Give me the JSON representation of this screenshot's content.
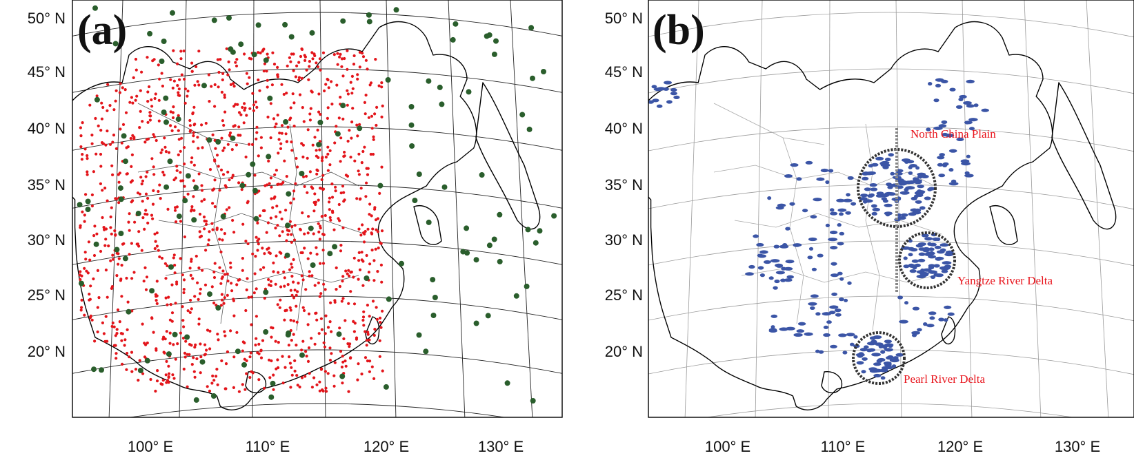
{
  "colors": {
    "surface_site": "#e3151b",
    "sounding_site": "#2a5e2c",
    "hotspot": "#3b55a6",
    "region_text": "#e8141c",
    "circle": "#333333"
  },
  "panels": [
    {
      "label": "(a)",
      "lat_labels": [
        "50° N",
        "45° N",
        "40° N",
        "35° N",
        "30° N",
        "25° N",
        "20° N"
      ],
      "lon_labels": [
        "100° E",
        "110° E",
        "120° E",
        "130° E"
      ]
    },
    {
      "label": "(b)",
      "lat_labels": [
        "50° N",
        "45° N",
        "40° N",
        "35° N",
        "30° N",
        "25° N",
        "20° N"
      ],
      "lon_labels": [
        "100° E",
        "110° E",
        "120° E",
        "130° E"
      ],
      "regions": [
        "North China Plain",
        "Yangtze River Delta",
        "Pearl River Delta"
      ]
    }
  ]
}
